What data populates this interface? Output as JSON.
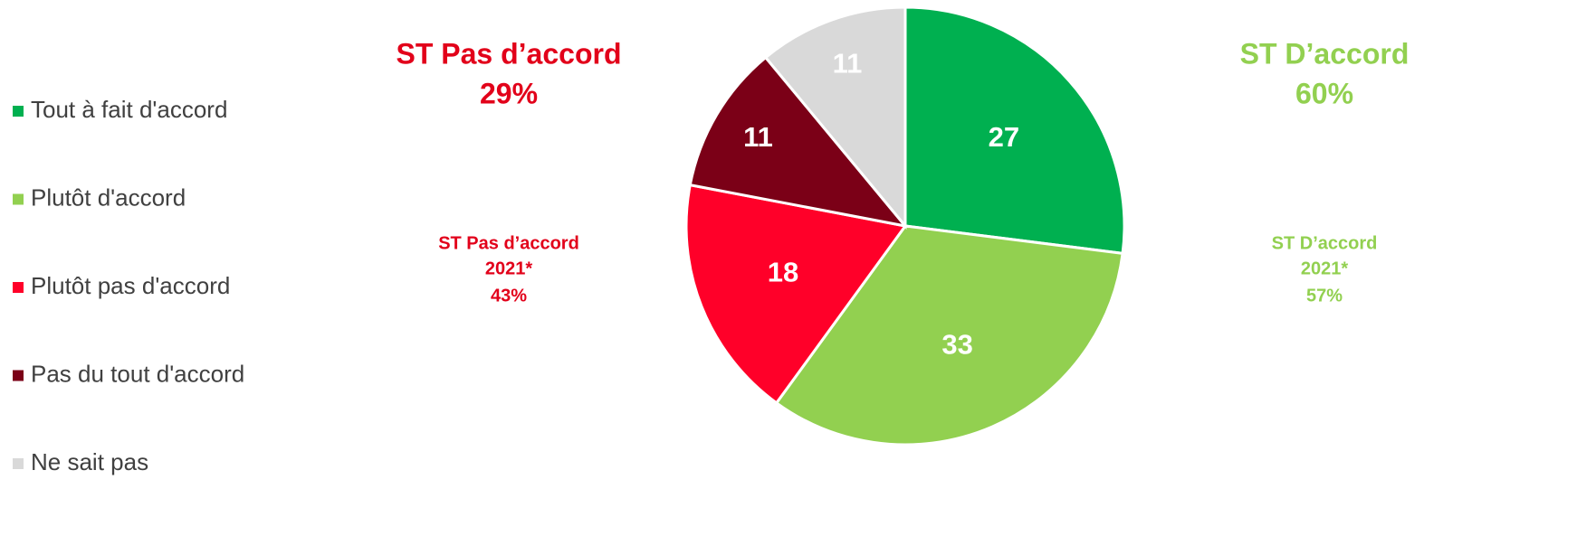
{
  "chart_data": {
    "type": "pie",
    "categories": [
      "Tout à fait d'accord",
      "Plutôt d'accord",
      "Plutôt pas d'accord",
      "Pas du tout d'accord",
      "Ne sait pas"
    ],
    "values": [
      27,
      33,
      18,
      11,
      11
    ],
    "colors": [
      "#00b050",
      "#92d050",
      "#ff0029",
      "#7b0017",
      "#d9d9d9"
    ],
    "legend": "left",
    "annotations": [
      {
        "lines": [
          "ST Pas d’accord",
          "29%"
        ],
        "color": "#e2001a"
      },
      {
        "lines": [
          "ST D’accord",
          "60%"
        ],
        "color": "#92d050"
      },
      {
        "lines": [
          "ST Pas d’accord",
          "2021*",
          "43%"
        ],
        "color": "#e2001a"
      },
      {
        "lines": [
          "ST D’accord",
          "2021*",
          "57%"
        ],
        "color": "#92d050"
      }
    ]
  }
}
